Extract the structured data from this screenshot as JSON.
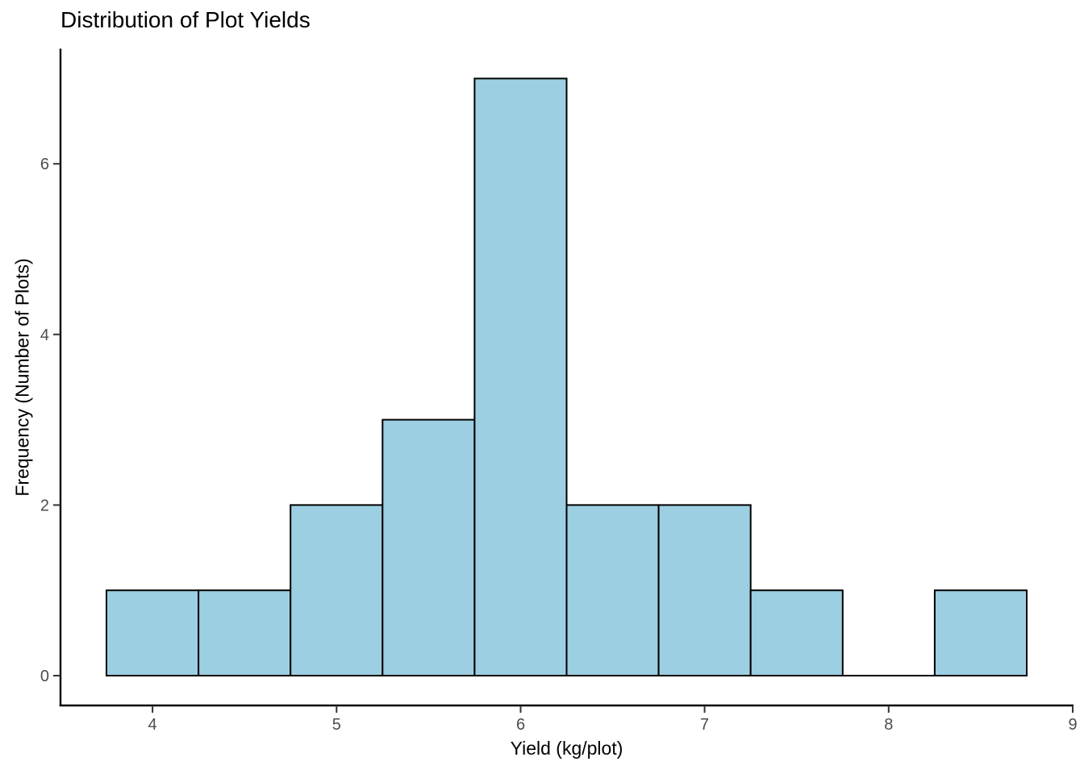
{
  "chart_data": {
    "type": "bar",
    "subtype": "histogram",
    "title": "Distribution of Plot Yields",
    "xlabel": "Yield (kg/plot)",
    "ylabel": "Frequency (Number of Plots)",
    "bin_edges": [
      3.75,
      4.25,
      4.75,
      5.25,
      5.75,
      6.25,
      6.75,
      7.25,
      7.75,
      8.25,
      8.75
    ],
    "counts": [
      1,
      1,
      2,
      3,
      7,
      2,
      2,
      1,
      0,
      1
    ],
    "x_ticks": [
      4,
      5,
      6,
      7,
      8,
      9
    ],
    "y_ticks": [
      0,
      2,
      4,
      6
    ],
    "xlim": [
      3.5,
      9.0
    ],
    "ylim": [
      -0.35,
      7.35
    ],
    "grid": false,
    "legend_position": "none",
    "colors": {
      "bar_fill": "#9DCFE2",
      "bar_stroke": "#000000",
      "axis_line": "#000000",
      "tick_mark": "#333333",
      "tick_label": "#4D4D4D",
      "title": "#000000",
      "axis_title": "#000000",
      "background": "#FFFFFF"
    }
  }
}
